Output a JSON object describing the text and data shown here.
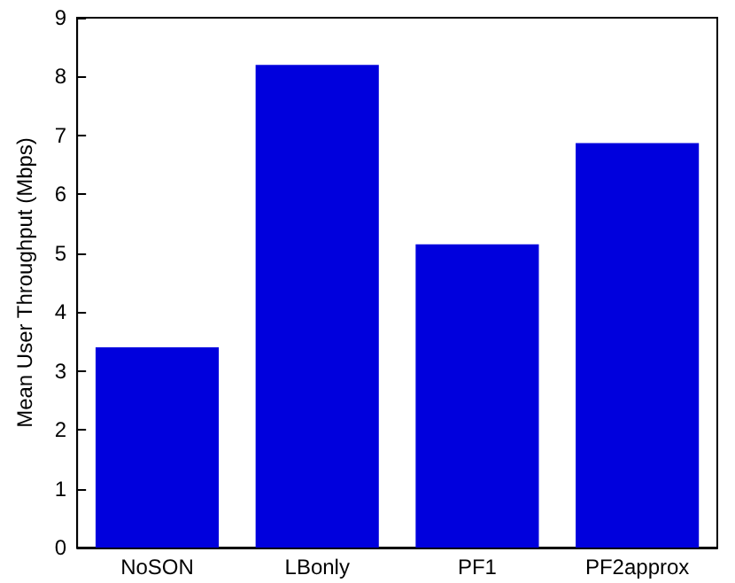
{
  "chart_data": {
    "type": "bar",
    "ylabel": "Mean User Throughput (Mbps)",
    "categories": [
      "NoSON",
      "LBonly",
      "PF1",
      "PF2approx"
    ],
    "values": [
      3.4,
      8.2,
      5.15,
      6.87
    ],
    "color": "#0000dd",
    "ylim": [
      0,
      9
    ],
    "yticks": [
      0,
      1,
      2,
      3,
      4,
      5,
      6,
      7,
      8,
      9
    ],
    "grid": false
  }
}
